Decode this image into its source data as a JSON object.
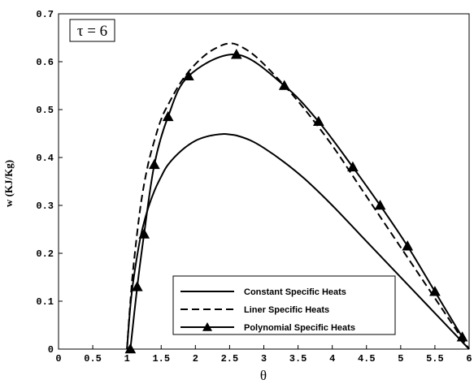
{
  "chart_data": {
    "type": "line",
    "title": "",
    "annotation": "τ = 6",
    "xlabel": "θ",
    "ylabel": "w (KJ/Kg)",
    "xlim": [
      0,
      6
    ],
    "ylim": [
      0,
      0.7
    ],
    "xticks": [
      "0",
      "0.5",
      "1",
      "1.5",
      "2",
      "2.5",
      "3",
      "3.5",
      "4",
      "4.5",
      "5",
      "5.5",
      "6"
    ],
    "yticks": [
      "0",
      "0.1",
      "0.2",
      "0.3",
      "0.4",
      "0.5",
      "0.6",
      "0.7"
    ],
    "grid": false,
    "legend_position": "bottom-right",
    "series": [
      {
        "name": "Constant Specific Heats",
        "style": "solid",
        "marker": "none",
        "x": [
          1.0,
          1.05,
          1.1,
          1.2,
          1.3,
          1.4,
          1.5,
          1.6,
          1.8,
          2.0,
          2.2,
          2.4,
          2.5,
          2.6,
          2.8,
          3.0,
          3.3,
          3.6,
          4.0,
          4.4,
          4.8,
          5.2,
          5.6,
          6.0
        ],
        "y": [
          0.0,
          0.09,
          0.15,
          0.235,
          0.29,
          0.33,
          0.36,
          0.385,
          0.415,
          0.435,
          0.445,
          0.449,
          0.448,
          0.446,
          0.436,
          0.42,
          0.39,
          0.355,
          0.3,
          0.24,
          0.18,
          0.12,
          0.06,
          0.0
        ]
      },
      {
        "name": "Liner Specific Heats",
        "style": "dashed",
        "marker": "none",
        "x": [
          1.0,
          1.05,
          1.1,
          1.2,
          1.3,
          1.4,
          1.5,
          1.6,
          1.8,
          2.0,
          2.2,
          2.4,
          2.5,
          2.6,
          2.8,
          3.0,
          3.3,
          3.6,
          4.0,
          4.4,
          4.8,
          5.2,
          5.6,
          6.0
        ],
        "y": [
          0.0,
          0.1,
          0.18,
          0.3,
          0.38,
          0.435,
          0.48,
          0.51,
          0.56,
          0.595,
          0.62,
          0.635,
          0.638,
          0.636,
          0.62,
          0.595,
          0.55,
          0.5,
          0.425,
          0.34,
          0.255,
          0.17,
          0.085,
          0.0
        ]
      },
      {
        "name": "Polynomial Specific Heats",
        "style": "solid",
        "marker": "triangle",
        "x": [
          1.05,
          1.15,
          1.25,
          1.4,
          1.6,
          1.9,
          2.6,
          3.3,
          3.8,
          4.3,
          4.7,
          5.1,
          5.5,
          5.9
        ],
        "y": [
          0.0,
          0.13,
          0.24,
          0.385,
          0.485,
          0.57,
          0.615,
          0.55,
          0.475,
          0.38,
          0.3,
          0.215,
          0.12,
          0.025
        ]
      }
    ]
  }
}
